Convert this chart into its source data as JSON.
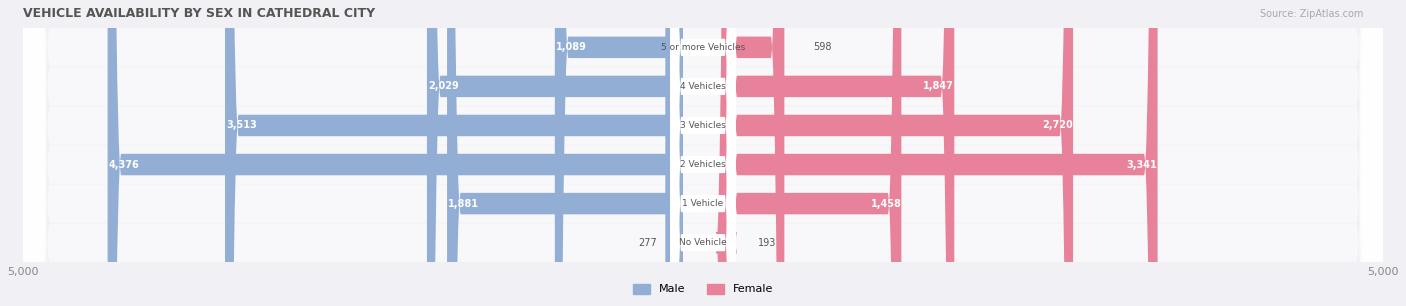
{
  "title": "VEHICLE AVAILABILITY BY SEX IN CATHEDRAL CITY",
  "source": "Source: ZipAtlas.com",
  "categories": [
    "No Vehicle",
    "1 Vehicle",
    "2 Vehicles",
    "3 Vehicles",
    "4 Vehicles",
    "5 or more Vehicles"
  ],
  "male_values": [
    277,
    1881,
    4376,
    3513,
    2029,
    1089
  ],
  "female_values": [
    193,
    1458,
    3341,
    2720,
    1847,
    598
  ],
  "max_val": 5000,
  "male_color": "#92aed4",
  "female_color": "#e8829a",
  "male_label": "Male",
  "female_label": "Female",
  "bg_color": "#f0f0f5",
  "row_bg": "#e8e8f0",
  "label_color_inside": "#ffffff",
  "label_color_outside": "#555555",
  "title_color": "#555555",
  "source_color": "#aaaaaa"
}
